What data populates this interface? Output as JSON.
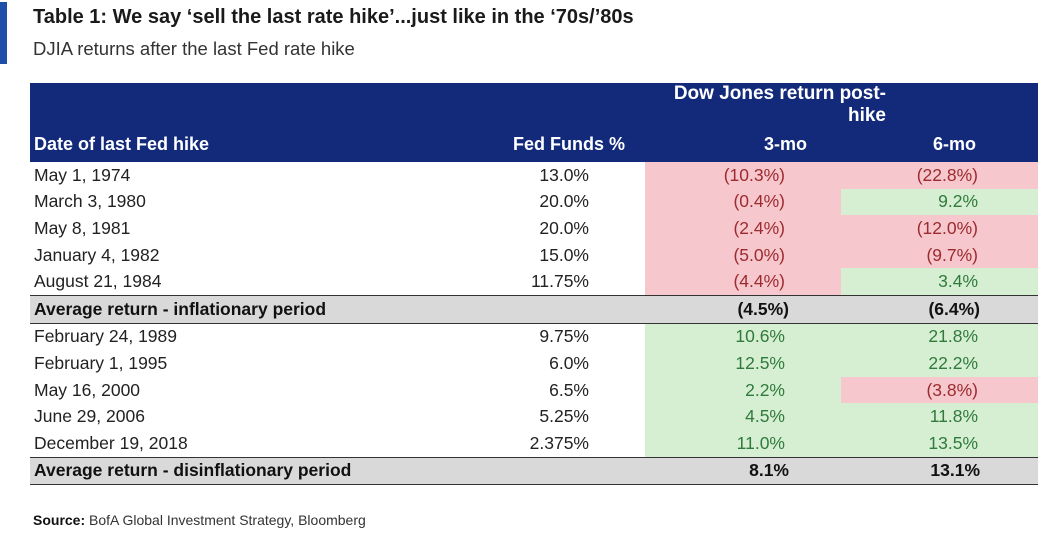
{
  "header": {
    "title": "Table 1: We say ‘sell the last rate hike’...just like in the ‘70s/’80s",
    "subtitle": "DJIA returns after the last Fed rate hike"
  },
  "table": {
    "group_header": "Dow Jones return post-hike",
    "columns": [
      "Date of last Fed hike",
      "Fed Funds %",
      "3-mo",
      "6-mo"
    ],
    "inflationary_rows": [
      {
        "date": "May 1, 1974",
        "ff": "13.0%",
        "m3": "(10.3%)",
        "m3_sign": "neg",
        "m6": "(22.8%)",
        "m6_sign": "neg"
      },
      {
        "date": "March 3, 1980",
        "ff": "20.0%",
        "m3": "(0.4%)",
        "m3_sign": "neg",
        "m6": "9.2%",
        "m6_sign": "pos"
      },
      {
        "date": "May 8, 1981",
        "ff": "20.0%",
        "m3": "(2.4%)",
        "m3_sign": "neg",
        "m6": "(12.0%)",
        "m6_sign": "neg"
      },
      {
        "date": "January 4, 1982",
        "ff": "15.0%",
        "m3": "(5.0%)",
        "m3_sign": "neg",
        "m6": "(9.7%)",
        "m6_sign": "neg"
      },
      {
        "date": "August 21, 1984",
        "ff": "11.75%",
        "m3": "(4.4%)",
        "m3_sign": "neg",
        "m6": "3.4%",
        "m6_sign": "pos"
      }
    ],
    "inflationary_avg": {
      "label": "Average return - inflationary period",
      "m3": "(4.5%)",
      "m6": "(6.4%)"
    },
    "disinflationary_rows": [
      {
        "date": "February 24, 1989",
        "ff": "9.75%",
        "m3": "10.6%",
        "m3_sign": "pos",
        "m6": "21.8%",
        "m6_sign": "pos"
      },
      {
        "date": "February 1, 1995",
        "ff": "6.0%",
        "m3": "12.5%",
        "m3_sign": "pos",
        "m6": "22.2%",
        "m6_sign": "pos"
      },
      {
        "date": "May 16, 2000",
        "ff": "6.5%",
        "m3": "2.2%",
        "m3_sign": "pos",
        "m6": "(3.8%)",
        "m6_sign": "neg"
      },
      {
        "date": "June 29, 2006",
        "ff": "5.25%",
        "m3": "4.5%",
        "m3_sign": "pos",
        "m6": "11.8%",
        "m6_sign": "pos"
      },
      {
        "date": "December 19, 2018",
        "ff": "2.375%",
        "m3": "11.0%",
        "m3_sign": "pos",
        "m6": "13.5%",
        "m6_sign": "pos"
      }
    ],
    "disinflationary_avg": {
      "label": "Average return - disinflationary period",
      "m3": "8.1%",
      "m6": "13.1%"
    }
  },
  "footer": {
    "source_label": "Source:",
    "source_text": " BofA Global Investment Strategy, Bloomberg"
  },
  "colors": {
    "accent": "#1c4fa8",
    "header_bg": "#13297a",
    "negative_bg": "#f6c8cd",
    "negative_text": "#9c2a2e",
    "positive_bg": "#d6efd2",
    "positive_text": "#2f7a3c",
    "average_bg": "#d9d9d9"
  }
}
